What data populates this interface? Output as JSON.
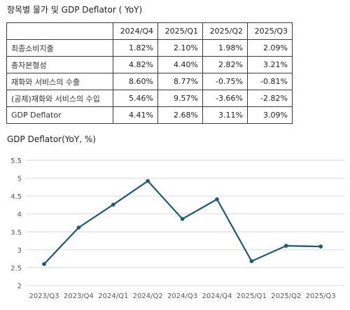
{
  "table": {
    "title": "항목별 물가 및 GDP Deflator ( YoY)",
    "columns": [
      "",
      "2024/Q4",
      "2025/Q1",
      "2025/Q2",
      "2025/Q3"
    ],
    "rows": [
      {
        "label": "최종소비지출",
        "values": [
          "1.82%",
          "2.10%",
          "1.98%",
          "2.09%"
        ]
      },
      {
        "label": "총자본형성",
        "values": [
          "4.82%",
          "4.40%",
          "2.82%",
          "3.21%"
        ]
      },
      {
        "label": "재화와 서비스의 수출",
        "values": [
          "8.60%",
          "8.77%",
          "-0.75%",
          "-0.81%"
        ]
      },
      {
        "label": "(공제)재화와 서비스의 수입",
        "values": [
          "5.46%",
          "9.57%",
          "-3.66%",
          "-2.82%"
        ]
      },
      {
        "label": "GDP Deflator",
        "values": [
          "4.41%",
          "2.68%",
          "3.11%",
          "3.09%"
        ]
      }
    ]
  },
  "chart_data": {
    "type": "line",
    "title": "GDP Deflator(YoY, %)",
    "categories": [
      "2023/Q3",
      "2023/Q4",
      "2024/Q1",
      "2024/Q2",
      "2024/Q3",
      "2024/Q4",
      "2025/Q1",
      "2025/Q2",
      "2025/Q3"
    ],
    "series": [
      {
        "values": [
          2.6,
          3.62,
          4.26,
          4.92,
          3.86,
          4.41,
          2.68,
          3.11,
          3.09
        ]
      }
    ],
    "ylim": [
      2,
      5.5
    ],
    "yticks": [
      "2",
      "2.5",
      "3",
      "3.5",
      "4",
      "4.5",
      "5",
      "5.5"
    ],
    "grid": true,
    "colors": {
      "line": "#1f5a73",
      "grid": "#d9d9d9",
      "axis_text": "#595959"
    }
  }
}
